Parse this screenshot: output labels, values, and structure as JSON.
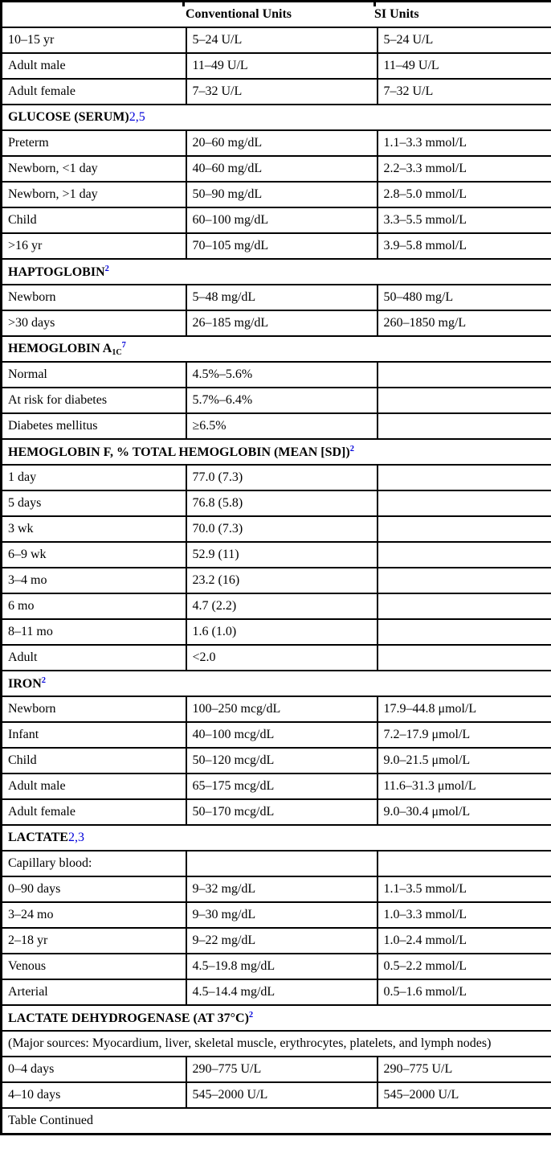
{
  "colors": {
    "footnote_blue": "#0000D9",
    "border": "#000000",
    "background": "#FFFFFF"
  },
  "table": {
    "header": {
      "columns": [
        {
          "label": "Conventional Units"
        },
        {
          "label": "SI Units"
        }
      ]
    },
    "rows": [
      {
        "type": "data",
        "cells": [
          "10–15 yr",
          "5–24 U/L",
          "5–24 U/L"
        ]
      },
      {
        "type": "data",
        "cells": [
          "Adult male",
          "11–49 U/L",
          "11–49 U/L"
        ]
      },
      {
        "type": "data",
        "cells": [
          "Adult female",
          "7–32 U/L",
          "7–32 U/L"
        ]
      },
      {
        "type": "section",
        "name": "glucose-serum",
        "fragments": [
          {
            "t": "GLUCOSE (SERUM)"
          },
          {
            "t": "2,5",
            "s": "blue"
          }
        ]
      },
      {
        "type": "data",
        "cells": [
          "Preterm",
          "20–60 mg/dL",
          "1.1–3.3 mmol/L"
        ]
      },
      {
        "type": "data",
        "cells": [
          "Newborn, <1 day",
          "40–60 mg/dL",
          "2.2–3.3 mmol/L"
        ]
      },
      {
        "type": "data",
        "cells": [
          "Newborn, >1 day",
          "50–90 mg/dL",
          "2.8–5.0 mmol/L"
        ]
      },
      {
        "type": "data",
        "cells": [
          "Child",
          "60–100 mg/dL",
          "3.3–5.5 mmol/L"
        ]
      },
      {
        "type": "data",
        "cells": [
          ">16 yr",
          "70–105 mg/dL",
          "3.9–5.8 mmol/L"
        ]
      },
      {
        "type": "section",
        "name": "haptoglobin",
        "fragments": [
          {
            "t": "HAPTOGLOBIN"
          },
          {
            "t": "2",
            "s": "supblue"
          }
        ]
      },
      {
        "type": "data",
        "cells": [
          "Newborn",
          "5–48 mg/dL",
          "50–480 mg/L"
        ]
      },
      {
        "type": "data",
        "cells": [
          ">30 days",
          "26–185 mg/dL",
          "260–1850 mg/L"
        ]
      },
      {
        "type": "section",
        "name": "hemoglobin-a1c",
        "fragments": [
          {
            "t": "HEMOGLOBIN A"
          },
          {
            "t": "1C",
            "s": "sub"
          },
          {
            "t": "7",
            "s": "supblue"
          }
        ]
      },
      {
        "type": "data",
        "cells": [
          "Normal",
          "4.5%–5.6%",
          ""
        ]
      },
      {
        "type": "data",
        "cells": [
          "At risk for diabetes",
          "5.7%–6.4%",
          ""
        ]
      },
      {
        "type": "data",
        "cells": [
          "Diabetes mellitus",
          "≥6.5%",
          ""
        ]
      },
      {
        "type": "section",
        "name": "hemoglobin-f",
        "fragments": [
          {
            "t": "HEMOGLOBIN F, % TOTAL HEMOGLOBIN (MEAN [SD])"
          },
          {
            "t": "2",
            "s": "supblue"
          }
        ]
      },
      {
        "type": "data",
        "cells": [
          "1 day",
          "77.0 (7.3)",
          ""
        ]
      },
      {
        "type": "data",
        "cells": [
          "5 days",
          "76.8 (5.8)",
          ""
        ]
      },
      {
        "type": "data",
        "cells": [
          "3 wk",
          "70.0 (7.3)",
          ""
        ]
      },
      {
        "type": "data",
        "cells": [
          "6–9 wk",
          "52.9 (11)",
          ""
        ]
      },
      {
        "type": "data",
        "cells": [
          "3–4 mo",
          "23.2 (16)",
          ""
        ]
      },
      {
        "type": "data",
        "cells": [
          "6 mo",
          "4.7 (2.2)",
          ""
        ]
      },
      {
        "type": "data",
        "cells": [
          "8–11 mo",
          "1.6 (1.0)",
          ""
        ]
      },
      {
        "type": "data",
        "cells": [
          "Adult",
          "<2.0",
          ""
        ]
      },
      {
        "type": "section",
        "name": "iron",
        "fragments": [
          {
            "t": "IRON"
          },
          {
            "t": "2",
            "s": "supblue"
          }
        ]
      },
      {
        "type": "data",
        "cells": [
          "Newborn",
          "100–250 mcg/dL",
          "17.9–44.8 μmol/L"
        ]
      },
      {
        "type": "data",
        "cells": [
          "Infant",
          "40–100 mcg/dL",
          "7.2–17.9 μmol/L"
        ]
      },
      {
        "type": "data",
        "cells": [
          "Child",
          "50–120 mcg/dL",
          "9.0–21.5 μmol/L"
        ]
      },
      {
        "type": "data",
        "cells": [
          "Adult male",
          "65–175 mcg/dL",
          "11.6–31.3 μmol/L"
        ]
      },
      {
        "type": "data",
        "cells": [
          "Adult female",
          "50–170 mcg/dL",
          "9.0–30.4 μmol/L"
        ]
      },
      {
        "type": "section",
        "name": "lactate",
        "fragments": [
          {
            "t": "LACTATE"
          },
          {
            "t": "2,3",
            "s": "blue"
          }
        ]
      },
      {
        "type": "data",
        "cells": [
          "Capillary blood:",
          "",
          ""
        ]
      },
      {
        "type": "data",
        "cells": [
          "0–90 days",
          "9–32 mg/dL",
          "1.1–3.5 mmol/L"
        ]
      },
      {
        "type": "data",
        "cells": [
          "3–24 mo",
          "9–30 mg/dL",
          "1.0–3.3 mmol/L"
        ]
      },
      {
        "type": "data",
        "cells": [
          "2–18 yr",
          "9–22 mg/dL",
          "1.0–2.4 mmol/L"
        ]
      },
      {
        "type": "data",
        "cells": [
          "Venous",
          "4.5–19.8 mg/dL",
          "0.5–2.2 mmol/L"
        ]
      },
      {
        "type": "data",
        "cells": [
          "Arterial",
          "4.5–14.4 mg/dL",
          "0.5–1.6 mmol/L"
        ]
      },
      {
        "type": "section",
        "name": "lactate-dehydrogenase",
        "fragments": [
          {
            "t": "LACTATE DEHYDROGENASE (AT 37°C)"
          },
          {
            "t": "2",
            "s": "supblue"
          }
        ]
      },
      {
        "type": "full",
        "name": "major-sources-note",
        "text": "(Major sources: Myocardium, liver, skeletal muscle, erythrocytes, platelets, and lymph nodes)"
      },
      {
        "type": "data",
        "cells": [
          "0–4 days",
          "290–775 U/L",
          "290–775 U/L"
        ]
      },
      {
        "type": "data",
        "cells": [
          "4–10 days",
          "545–2000 U/L",
          "545–2000 U/L"
        ]
      },
      {
        "type": "full",
        "name": "table-continued",
        "text": "Table Continued"
      }
    ]
  }
}
